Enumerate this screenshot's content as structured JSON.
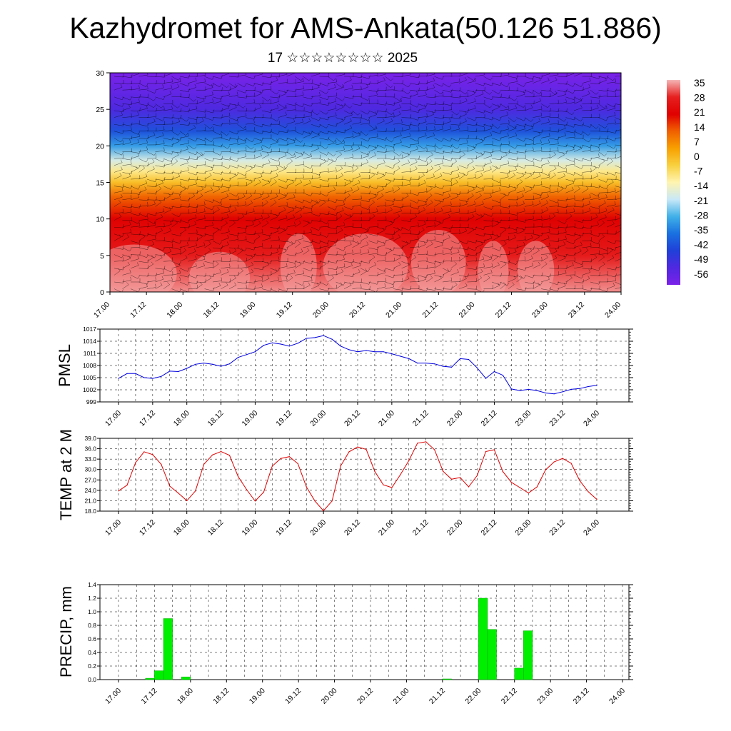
{
  "header": {
    "title": "Kazhydromet for AMS-Ankata(50.126 51.886)",
    "subtitle": "17 ☆☆☆☆☆☆☆☆ 2025"
  },
  "chart_data": [
    {
      "type": "heatmap",
      "title": "",
      "ylim": [
        0,
        30
      ],
      "yticks": [
        "0",
        "5",
        "10",
        "15",
        "20",
        "25",
        "30"
      ],
      "xtick_labels": [
        "17.00",
        "17.12",
        "18.00",
        "18.12",
        "19.00",
        "19.12",
        "20.00",
        "20.12",
        "21.00",
        "21.12",
        "22.00",
        "22.12",
        "23.00",
        "23.12",
        "24.00"
      ],
      "colorbar": {
        "labels": [
          "35",
          "28",
          "21",
          "14",
          "7",
          "0",
          "-7",
          "-14",
          "-21",
          "-28",
          "-35",
          "-42",
          "-49",
          "-56"
        ],
        "stops": [
          "#f5b5b5",
          "#e62020",
          "#e00000",
          "#f06000",
          "#f8a000",
          "#f8d040",
          "#fff4b0",
          "#c8e8f8",
          "#40b0e8",
          "#1a70e0",
          "#2040d8",
          "#5028e0",
          "#7a22e8"
        ]
      },
      "temperature_levels": [
        {
          "level": 0,
          "value": 33
        },
        {
          "level": 5,
          "value": 26
        },
        {
          "level": 10,
          "value": 20
        },
        {
          "level": 13,
          "value": 12
        },
        {
          "level": 15,
          "value": 0
        },
        {
          "level": 16.5,
          "value": -8
        },
        {
          "level": 18,
          "value": -16
        },
        {
          "level": 20,
          "value": -28
        },
        {
          "level": 22,
          "value": -38
        },
        {
          "level": 25,
          "value": -48
        },
        {
          "level": 30,
          "value": -56
        }
      ],
      "grid": false
    },
    {
      "type": "line",
      "ylabel": "PMSL",
      "ylim": [
        999,
        1017
      ],
      "yticks": [
        "999",
        "1002",
        "1005",
        "1008",
        "1011",
        "1014",
        "1017"
      ],
      "xtick_labels": [
        "17.00",
        "17.12",
        "18.00",
        "18.12",
        "19.00",
        "19.12",
        "20.00",
        "20.12",
        "21.00",
        "21.12",
        "22.00",
        "22.12",
        "23.00",
        "23.12",
        "24.00"
      ],
      "color": "#0000dd",
      "grid": true,
      "x": [
        0,
        3,
        6,
        9,
        12,
        15,
        18,
        21,
        24,
        27,
        30,
        33,
        36,
        39,
        42,
        45,
        48,
        51,
        54,
        57,
        60,
        63,
        66,
        69,
        72,
        75,
        78,
        81,
        84,
        87,
        90,
        93,
        96,
        99,
        102,
        105,
        108,
        111,
        114,
        117,
        120,
        123,
        126,
        129,
        132,
        135,
        138,
        141,
        144,
        147,
        150,
        153,
        156,
        159,
        162,
        165,
        168
      ],
      "values": [
        1004.8,
        1006,
        1006,
        1005,
        1004.8,
        1005.3,
        1006.6,
        1006.5,
        1007.3,
        1008.3,
        1008.6,
        1008.3,
        1007.8,
        1008.4,
        1010,
        1010.7,
        1011.4,
        1013,
        1013.6,
        1013.3,
        1012.8,
        1013.5,
        1014.7,
        1014.9,
        1015.4,
        1014.5,
        1012.8,
        1011.9,
        1011.4,
        1011.7,
        1011.4,
        1011.4,
        1010.9,
        1010.3,
        1009.7,
        1008.6,
        1008.6,
        1008.4,
        1007.8,
        1007.6,
        1009.7,
        1009.5,
        1007.4,
        1004.8,
        1006.5,
        1005.6,
        1002.2,
        1001.8,
        1002.1,
        1001.8,
        1001.2,
        1001.0,
        1001.5,
        1002.1,
        1002.3,
        1002.8,
        1003.1
      ]
    },
    {
      "type": "line",
      "ylabel": "TEMP at 2 M",
      "ylim": [
        18,
        39
      ],
      "yticks": [
        "18.0",
        "21.0",
        "24.0",
        "27.0",
        "30.0",
        "33.0",
        "36.0",
        "39.0"
      ],
      "xtick_labels": [
        "17.00",
        "17.12",
        "18.00",
        "18.12",
        "19.00",
        "19.12",
        "20.00",
        "20.12",
        "21.00",
        "21.12",
        "22.00",
        "22.12",
        "23.00",
        "23.12",
        "24.00"
      ],
      "color": "#dd0000",
      "grid": true,
      "x": [
        0,
        3,
        6,
        9,
        12,
        15,
        18,
        21,
        24,
        27,
        30,
        33,
        36,
        39,
        42,
        45,
        48,
        51,
        54,
        57,
        60,
        63,
        66,
        69,
        72,
        75,
        78,
        81,
        84,
        87,
        90,
        93,
        96,
        99,
        102,
        105,
        108,
        111,
        114,
        117,
        120,
        123,
        126,
        129,
        132,
        135,
        138,
        141,
        144,
        147,
        150,
        153,
        156,
        159,
        162,
        165,
        168
      ],
      "values": [
        23.8,
        25.5,
        32,
        35.1,
        34.3,
        31.5,
        25.2,
        23.2,
        21,
        23.8,
        31.5,
        34.2,
        35.2,
        34.1,
        28,
        24.2,
        20.9,
        23.5,
        31,
        33.2,
        33.7,
        31.7,
        25,
        20.9,
        18.1,
        20.9,
        31,
        35.1,
        36.5,
        35.8,
        29.5,
        25.6,
        24.8,
        28.5,
        32.6,
        37.6,
        38,
        35.7,
        29.5,
        27.2,
        27.7,
        25,
        28.3,
        35.2,
        35.7,
        29.4,
        26.3,
        24.8,
        23.2,
        25,
        29.9,
        32.2,
        33.2,
        31.8,
        26.8,
        23.6,
        21.4
      ]
    },
    {
      "type": "bar",
      "ylabel": "PRECIP, mm",
      "ylim": [
        0,
        1.4
      ],
      "yticks": [
        "0.0",
        "0.2",
        "0.4",
        "0.6",
        "0.8",
        "1.0",
        "1.2",
        "1.4"
      ],
      "xtick_labels": [
        "17.00",
        "17.12",
        "18.00",
        "18.12",
        "19.00",
        "19.12",
        "20.00",
        "20.12",
        "21.00",
        "21.12",
        "22.00",
        "22.12",
        "23.00",
        "23.12",
        "24.00"
      ],
      "color": "#00ee00",
      "grid": true,
      "bar_width_hours": 3,
      "x": [
        9,
        12,
        15,
        21,
        108,
        120,
        123,
        132,
        135
      ],
      "values": [
        0.02,
        0.13,
        0.9,
        0.04,
        0.01,
        1.2,
        0.74,
        0.17,
        0.72
      ]
    }
  ]
}
